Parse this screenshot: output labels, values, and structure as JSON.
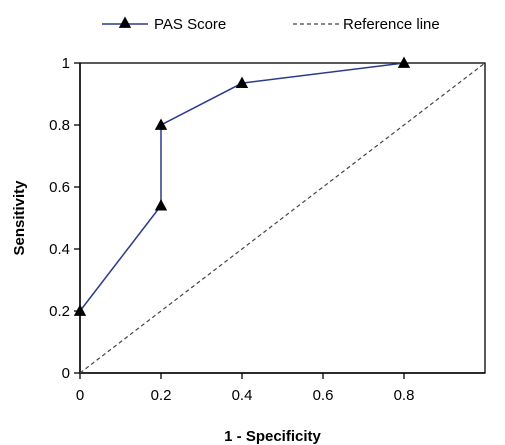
{
  "chart_data": {
    "type": "line",
    "xlabel": "1 - Specificity",
    "ylabel": "Sensitivity",
    "xlim": [
      0,
      1
    ],
    "ylim": [
      0,
      1
    ],
    "x_ticks": [
      0,
      0.2,
      0.4,
      0.6,
      0.8
    ],
    "x_tick_labels": [
      "0",
      "0.2",
      "0.4",
      "0.6",
      "0.8"
    ],
    "y_ticks": [
      0,
      0.2,
      0.4,
      0.6,
      0.8,
      1
    ],
    "y_tick_labels": [
      "0",
      "0.2",
      "0.4",
      "0.6",
      "0.8",
      "1"
    ],
    "grid": false,
    "legend_position": "top",
    "series": [
      {
        "name": "PAS Score",
        "style": "solid",
        "marker": "triangle",
        "color": "#2b3a8c",
        "points": [
          {
            "x": 0,
            "y": 0.2
          },
          {
            "x": 0.2,
            "y": 0.54
          },
          {
            "x": 0.2,
            "y": 0.8
          },
          {
            "x": 0.4,
            "y": 0.935
          },
          {
            "x": 0.8,
            "y": 1
          }
        ]
      },
      {
        "name": "Reference line",
        "style": "dashed",
        "marker": "none",
        "color": "#444444",
        "points": [
          {
            "x": 0,
            "y": 0
          },
          {
            "x": 1,
            "y": 1
          }
        ]
      }
    ]
  }
}
